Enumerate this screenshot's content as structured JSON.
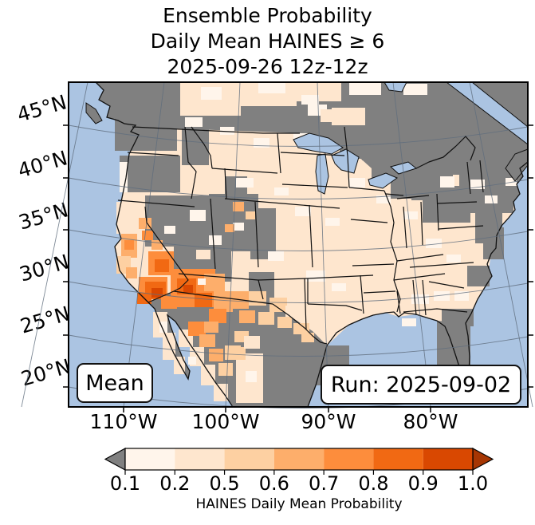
{
  "title": {
    "line1": "Ensemble Probability",
    "line2": "Daily Mean HAINES ≥ 6",
    "line3": "2025-09-26 12z-12z"
  },
  "map": {
    "mean_label": "Mean",
    "run_label": "Run: 2025-09-02",
    "lat_ticks": [
      "45°N",
      "40°N",
      "35°N",
      "30°N",
      "25°N",
      "20°N"
    ],
    "lon_ticks": [
      "110°W",
      "100°W",
      "90°W",
      "80°W"
    ],
    "colors": {
      "ocean": "#abc4e2",
      "no_data": "#808080",
      "coastline": "#111111",
      "state_border": "#111111",
      "graticule": "#5f6d7d"
    }
  },
  "colorbar": {
    "label": "HAINES Daily Mean Probability",
    "tick_labels": [
      "0.1",
      "0.2",
      "0.5",
      "0.6",
      "0.7",
      "0.8",
      "0.9",
      "1.0"
    ],
    "under_color": "#808080",
    "over_color": "#a63603",
    "classes": [
      {
        "range": "0.1-0.2",
        "color": "#fff5eb"
      },
      {
        "range": "0.2-0.5",
        "color": "#fee6ce"
      },
      {
        "range": "0.5-0.6",
        "color": "#fdd0a2"
      },
      {
        "range": "0.6-0.7",
        "color": "#fdae6b"
      },
      {
        "range": "0.7-0.8",
        "color": "#fd8d3c"
      },
      {
        "range": "0.8-0.9",
        "color": "#f16913"
      },
      {
        "range": "0.9-1.0",
        "color": "#d94801"
      }
    ]
  },
  "chart_data": {
    "type": "heatmap",
    "title": "Ensemble Probability Daily Mean HAINES ≥ 6, 2025-09-26 12z-12z, Run 2025-09-02",
    "ylabel_ticks_deg_n": [
      45,
      40,
      35,
      30,
      25,
      20
    ],
    "xlabel_ticks_deg_w": [
      110,
      100,
      90,
      80
    ],
    "colorbar_bounds": [
      0.1,
      0.2,
      0.5,
      0.6,
      0.7,
      0.8,
      0.9,
      1.0
    ],
    "regions_summary": [
      {
        "region": "Southern California / southwest Arizona",
        "probability": "0.7-1.0"
      },
      {
        "region": "Arizona, southern Nevada, Sonora-Chihuahua strip",
        "probability": "0.5-0.9"
      },
      {
        "region": "Sierra Nevada / western Nevada patches",
        "probability": "0.5-0.8"
      },
      {
        "region": "Southern New Mexico / far west Texas fringe",
        "probability": "0.5-0.6"
      },
      {
        "region": "Central and eastern US plains and South",
        "probability": "0.2-0.5"
      },
      {
        "region": "Scattered plains, Gulf-coast and New England patches",
        "probability": "0.1-0.2"
      },
      {
        "region": "Pacific NW, Great Basin, upper Great Lakes, Northeast, Florida, south Texas, most of Mexico and Canada",
        "probability": "no data (gray)"
      }
    ],
    "field_patches": [
      [
        "c2",
        140,
        0,
        76,
        42
      ],
      [
        "c1",
        166,
        6,
        26,
        16
      ],
      [
        "c2",
        214,
        0,
        72,
        30
      ],
      [
        "c1",
        238,
        0,
        34,
        14
      ],
      [
        "c2",
        286,
        0,
        56,
        24
      ],
      [
        "c1",
        300,
        28,
        24,
        14
      ],
      [
        "c2",
        330,
        32,
        42,
        22
      ],
      [
        "c1",
        352,
        0,
        40,
        16
      ],
      [
        "c1",
        292,
        16,
        22,
        12
      ],
      [
        "c2",
        316,
        34,
        26,
        16
      ],
      [
        "c1",
        420,
        2,
        30,
        14
      ],
      [
        "g",
        58,
        44,
        78,
        42
      ],
      [
        "g",
        64,
        92,
        76,
        46
      ],
      [
        "g",
        142,
        52,
        34,
        52
      ],
      [
        "g",
        96,
        142,
        98,
        64
      ],
      [
        "g",
        132,
        200,
        72,
        50
      ],
      [
        "g",
        176,
        140,
        62,
        72
      ],
      [
        "g",
        196,
        118,
        28,
        28
      ],
      [
        "g",
        228,
        158,
        32,
        64
      ],
      [
        "g",
        226,
        238,
        32,
        54
      ],
      [
        "g",
        340,
        56,
        66,
        40
      ],
      [
        "g",
        380,
        92,
        40,
        34
      ],
      [
        "g",
        368,
        86,
        34,
        12
      ],
      [
        "g",
        404,
        96,
        40,
        50
      ],
      [
        "g",
        430,
        100,
        52,
        48
      ],
      [
        "g",
        452,
        86,
        46,
        30
      ],
      [
        "g",
        490,
        86,
        68,
        78
      ],
      [
        "g",
        444,
        130,
        60,
        46
      ],
      [
        "g",
        510,
        160,
        34,
        42
      ],
      [
        "g",
        520,
        182,
        26,
        40
      ],
      [
        "g",
        500,
        230,
        28,
        26
      ],
      [
        "g",
        468,
        284,
        40,
        22
      ],
      [
        "g",
        462,
        300,
        42,
        76
      ],
      [
        "g",
        296,
        330,
        56,
        50
      ],
      [
        "c1",
        64,
        100,
        10,
        38
      ],
      [
        "c2",
        60,
        150,
        10,
        40
      ],
      [
        "c1",
        146,
        44,
        22,
        12
      ],
      [
        "c1",
        190,
        56,
        18,
        10
      ],
      [
        "c1",
        232,
        70,
        20,
        12
      ],
      [
        "c1",
        282,
        64,
        18,
        10
      ],
      [
        "c1",
        312,
        78,
        16,
        10
      ],
      [
        "c1",
        210,
        120,
        22,
        12
      ],
      [
        "c1",
        258,
        132,
        18,
        10
      ],
      [
        "c1",
        284,
        156,
        20,
        12
      ],
      [
        "c1",
        322,
        170,
        18,
        10
      ],
      [
        "c1",
        250,
        212,
        20,
        12
      ],
      [
        "c1",
        298,
        236,
        24,
        14
      ],
      [
        "c1",
        330,
        252,
        18,
        10
      ],
      [
        "c1",
        352,
        120,
        20,
        12
      ],
      [
        "c1",
        386,
        142,
        18,
        10
      ],
      [
        "c1",
        420,
        162,
        18,
        10
      ],
      [
        "c1",
        448,
        196,
        20,
        12
      ],
      [
        "c1",
        474,
        216,
        18,
        10
      ],
      [
        "c1",
        430,
        266,
        22,
        12
      ],
      [
        "c1",
        458,
        262,
        20,
        12
      ],
      [
        "c1",
        484,
        262,
        18,
        12
      ],
      [
        "c1",
        418,
        296,
        18,
        10
      ],
      [
        "c1",
        504,
        122,
        18,
        12
      ],
      [
        "c1",
        522,
        142,
        16,
        10
      ],
      [
        "c1",
        466,
        118,
        18,
        14
      ],
      [
        "c1",
        548,
        120,
        14,
        10
      ],
      [
        "c1",
        152,
        160,
        20,
        14
      ],
      [
        "c1",
        176,
        192,
        16,
        12
      ],
      [
        "c1",
        120,
        180,
        14,
        10
      ],
      [
        "c1",
        206,
        176,
        14,
        10
      ],
      [
        "c2",
        160,
        210,
        18,
        12
      ],
      [
        "c2",
        106,
        288,
        18,
        32
      ],
      [
        "c2",
        118,
        314,
        16,
        34
      ],
      [
        "c1",
        114,
        300,
        10,
        14
      ],
      [
        "c2",
        132,
        344,
        14,
        22
      ],
      [
        "c2",
        138,
        310,
        18,
        22
      ],
      [
        "c2",
        152,
        332,
        18,
        24
      ],
      [
        "c2",
        166,
        354,
        18,
        26
      ],
      [
        "c2",
        182,
        378,
        18,
        22
      ],
      [
        "c1",
        150,
        344,
        10,
        10
      ],
      [
        "c2",
        210,
        340,
        34,
        62
      ],
      [
        "c1",
        222,
        362,
        14,
        14
      ],
      [
        "c3",
        204,
        332,
        18,
        16
      ],
      [
        "c4",
        66,
        190,
        20,
        30
      ],
      [
        "c5",
        70,
        198,
        12,
        12
      ],
      [
        "c3",
        60,
        218,
        18,
        22
      ],
      [
        "c4",
        72,
        232,
        14,
        14
      ],
      [
        "c4",
        88,
        170,
        16,
        14
      ],
      [
        "c5",
        92,
        186,
        14,
        12
      ],
      [
        "c4",
        104,
        198,
        14,
        12
      ],
      [
        "c5",
        100,
        212,
        32,
        30
      ],
      [
        "c6",
        108,
        222,
        18,
        16
      ],
      [
        "c4",
        206,
        150,
        14,
        12
      ],
      [
        "c3",
        222,
        162,
        12,
        10
      ],
      [
        "c4",
        196,
        178,
        12,
        10
      ],
      [
        "c5",
        88,
        244,
        36,
        26
      ],
      [
        "c6",
        96,
        250,
        26,
        22
      ],
      [
        "c7",
        104,
        258,
        14,
        12
      ],
      [
        "c6",
        86,
        264,
        18,
        14
      ],
      [
        "c5",
        116,
        268,
        20,
        16
      ],
      [
        "c5",
        128,
        234,
        56,
        48
      ],
      [
        "c6",
        136,
        246,
        24,
        20
      ],
      [
        "c6",
        158,
        264,
        22,
        18
      ],
      [
        "c7",
        144,
        254,
        12,
        10
      ],
      [
        "c4",
        170,
        240,
        26,
        22
      ],
      [
        "c4",
        182,
        262,
        24,
        26
      ],
      [
        "c5",
        176,
        284,
        22,
        18
      ],
      [
        "c1",
        162,
        246,
        10,
        8
      ],
      [
        "c4",
        200,
        262,
        26,
        22
      ],
      [
        "c3",
        226,
        262,
        22,
        18
      ],
      [
        "c4",
        214,
        286,
        20,
        16
      ],
      [
        "c3",
        238,
        288,
        20,
        16
      ],
      [
        "c3",
        252,
        270,
        22,
        18
      ],
      [
        "c2",
        272,
        280,
        20,
        16
      ],
      [
        "c3",
        262,
        294,
        18,
        14
      ],
      [
        "c3",
        282,
        302,
        20,
        14
      ],
      [
        "c3",
        292,
        314,
        16,
        12
      ],
      [
        "c5",
        150,
        300,
        22,
        18
      ],
      [
        "c4",
        164,
        316,
        20,
        16
      ],
      [
        "c4",
        176,
        334,
        18,
        16
      ],
      [
        "c3",
        188,
        352,
        18,
        16
      ],
      [
        "c4",
        170,
        300,
        18,
        14
      ],
      [
        "c3",
        196,
        330,
        20,
        18
      ],
      [
        "c3",
        208,
        312,
        18,
        14
      ],
      [
        "c2",
        220,
        318,
        20,
        16
      ]
    ]
  }
}
